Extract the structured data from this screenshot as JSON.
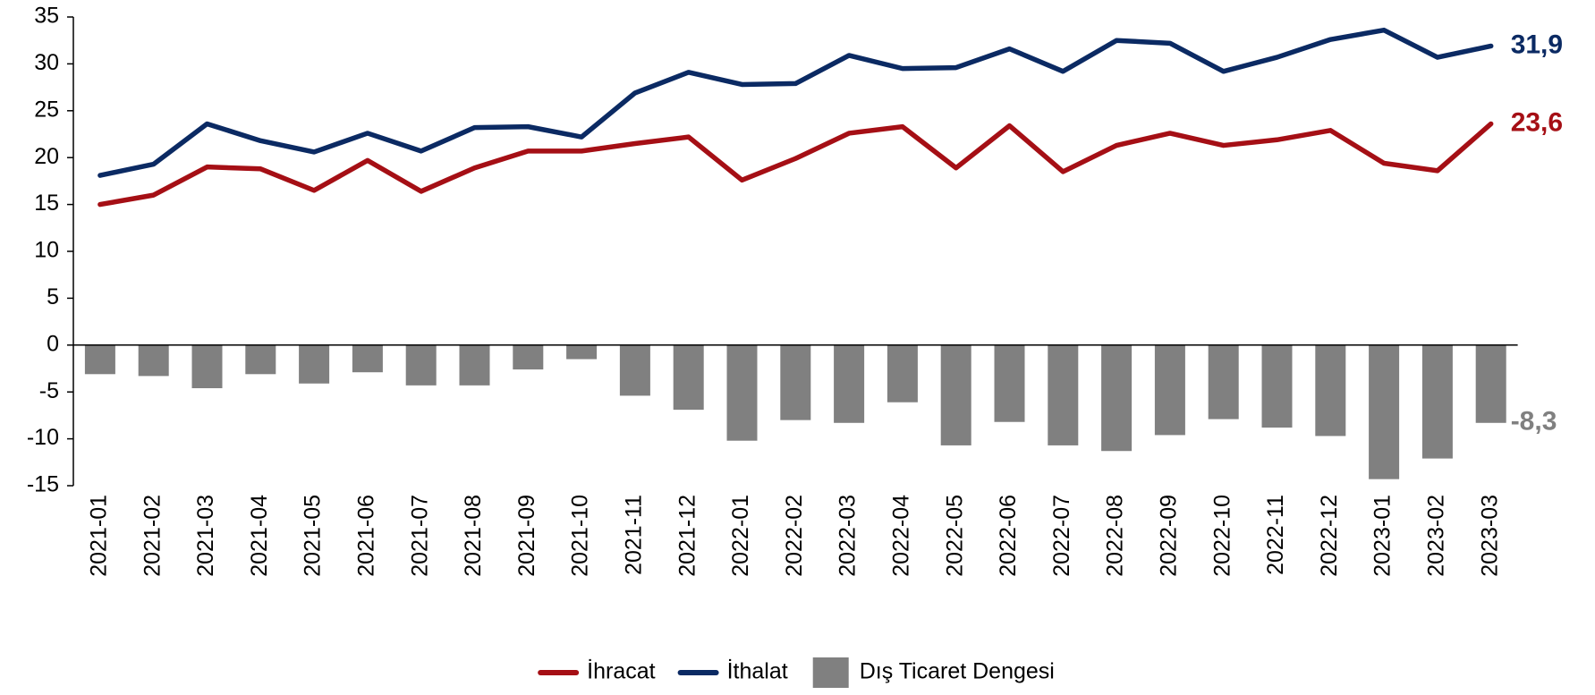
{
  "chart_data": {
    "type": "combo",
    "categories": [
      "2021-01",
      "2021-02",
      "2021-03",
      "2021-04",
      "2021-05",
      "2021-06",
      "2021-07",
      "2021-08",
      "2021-09",
      "2021-10",
      "2021-11",
      "2021-12",
      "2022-01",
      "2022-02",
      "2022-03",
      "2022-04",
      "2022-05",
      "2022-06",
      "2022-07",
      "2022-08",
      "2022-09",
      "2022-10",
      "2022-11",
      "2022-12",
      "2023-01",
      "2023-02",
      "2023-03"
    ],
    "series": [
      {
        "name": "İhracat",
        "type": "line",
        "color": "#a50f15",
        "values": [
          15.0,
          16.0,
          19.0,
          18.8,
          16.5,
          19.7,
          16.4,
          18.9,
          20.7,
          20.7,
          21.5,
          22.2,
          17.6,
          19.9,
          22.6,
          23.3,
          18.9,
          23.4,
          18.5,
          21.3,
          22.6,
          21.3,
          21.9,
          22.9,
          19.4,
          18.6,
          23.6
        ],
        "value_labels": [
          null,
          null,
          null,
          null,
          null,
          null,
          null,
          null,
          null,
          null,
          null,
          null,
          null,
          null,
          null,
          null,
          null,
          null,
          null,
          null,
          null,
          null,
          null,
          null,
          null,
          null,
          "23,6"
        ]
      },
      {
        "name": "İthalat",
        "type": "line",
        "color": "#0b2a63",
        "values": [
          18.1,
          19.3,
          23.6,
          21.8,
          20.6,
          22.6,
          20.7,
          23.2,
          23.3,
          22.2,
          26.9,
          29.1,
          27.8,
          27.9,
          30.9,
          29.5,
          29.6,
          31.6,
          29.2,
          32.5,
          32.2,
          29.2,
          30.7,
          32.6,
          33.6,
          30.7,
          31.9
        ],
        "value_labels": [
          null,
          null,
          null,
          null,
          null,
          null,
          null,
          null,
          null,
          null,
          null,
          null,
          null,
          null,
          null,
          null,
          null,
          null,
          null,
          null,
          null,
          null,
          null,
          null,
          null,
          null,
          "31,9"
        ]
      },
      {
        "name": "Dış Ticaret Dengesi",
        "type": "bar",
        "color": "#808080",
        "values": [
          -3.1,
          -3.3,
          -4.6,
          -3.1,
          -4.1,
          -2.9,
          -4.3,
          -4.3,
          -2.6,
          -1.5,
          -5.4,
          -6.9,
          -10.2,
          -8.0,
          -8.3,
          -6.1,
          -10.7,
          -8.2,
          -10.7,
          -11.3,
          -9.6,
          -7.9,
          -8.8,
          -9.7,
          -14.3,
          -12.1,
          -8.3
        ],
        "value_labels": [
          null,
          null,
          null,
          null,
          null,
          null,
          null,
          null,
          null,
          null,
          null,
          null,
          null,
          null,
          null,
          null,
          null,
          null,
          null,
          null,
          null,
          null,
          null,
          null,
          null,
          null,
          "-8,3"
        ]
      }
    ],
    "ylim": [
      -15,
      35
    ],
    "yticks": [
      -15,
      -10,
      -5,
      0,
      5,
      10,
      15,
      20,
      25,
      30,
      35
    ],
    "legend": "bottom",
    "grid": false
  }
}
